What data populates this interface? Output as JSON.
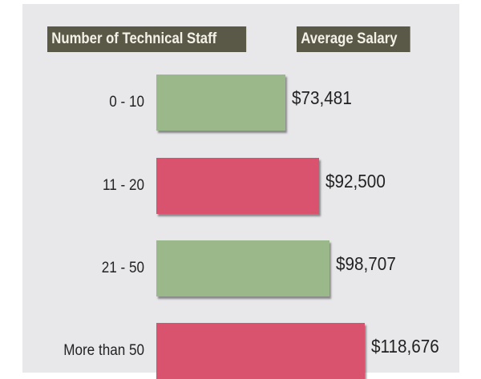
{
  "chart_data": {
    "type": "bar",
    "orientation": "horizontal",
    "header_category": "Number of Technical Staff",
    "header_value": "Average Salary",
    "categories": [
      "0 - 10",
      "11 - 20",
      "21 - 50",
      "More than 50"
    ],
    "values": [
      73481,
      92500,
      98707,
      118676
    ],
    "value_labels": [
      "$73,481",
      "$92,500",
      "$98,707",
      "$118,676"
    ],
    "colors": [
      "#9bb88a",
      "#d9536e",
      "#9bb88a",
      "#d9536e"
    ]
  }
}
